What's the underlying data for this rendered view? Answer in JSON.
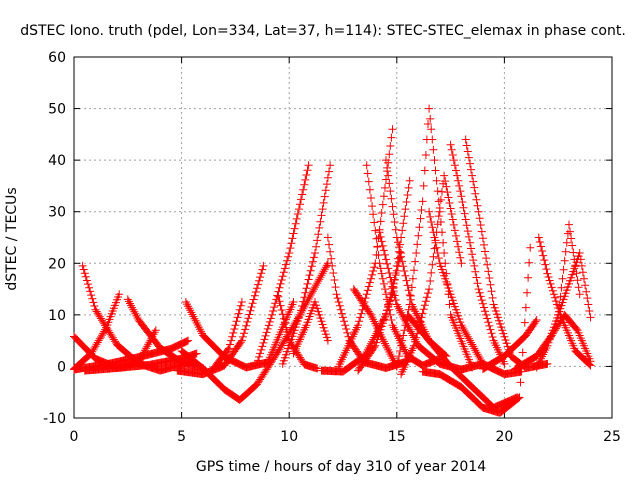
{
  "chart_data": {
    "type": "scatter",
    "title": "dSTEC Iono. truth (pdel, Lon=334, Lat=37, h=114): STEC-STEC_elemax in phase cont.",
    "xlabel": "GPS time / hours of day 310 of year 2014",
    "ylabel": "dSTEC  / TECUs",
    "xlim": [
      0,
      25
    ],
    "ylim": [
      -10,
      60
    ],
    "x_ticks": [
      0,
      5,
      10,
      15,
      20,
      25
    ],
    "y_ticks": [
      -10,
      0,
      10,
      20,
      30,
      40,
      50,
      60
    ],
    "x_tick_labels": [
      "0",
      "5",
      "10",
      "15",
      "20",
      "25"
    ],
    "y_tick_labels": [
      "-10",
      "0",
      "10",
      "20",
      "30",
      "40",
      "50",
      "60"
    ],
    "grid": true,
    "marker": "+",
    "colors": {
      "series": "#ff0000",
      "grid": "#a0a0a0",
      "axis": "#000000"
    },
    "series": [
      {
        "x": [
          0.0,
          1.0,
          2.0,
          3.0,
          3.8
        ],
        "y": [
          5.8,
          1.5,
          -0.3,
          0.8,
          7.0
        ]
      },
      {
        "x": [
          0.4,
          1.0,
          2.0,
          3.0,
          4.0,
          5.4
        ],
        "y": [
          19.5,
          11.0,
          4.2,
          0.6,
          -0.8,
          0.8
        ]
      },
      {
        "x": [
          0.0,
          0.8,
          1.5,
          2.1
        ],
        "y": [
          -0.5,
          2.5,
          7.5,
          14.0
        ]
      },
      {
        "x": [
          0.0,
          1.5,
          3.0,
          4.5,
          5.3
        ],
        "y": [
          -0.6,
          0.4,
          1.8,
          3.4,
          5.0
        ]
      },
      {
        "x": [
          2.5,
          3.0,
          4.0,
          5.0,
          6.0
        ],
        "y": [
          13.0,
          9.0,
          3.6,
          0.8,
          -0.3
        ]
      },
      {
        "x": [
          0.5,
          2.0,
          3.5,
          5.0,
          5.7
        ],
        "y": [
          -0.8,
          -0.3,
          0.3,
          1.5,
          2.5
        ]
      },
      {
        "x": [
          5.0,
          6.0,
          7.0,
          7.7,
          8.5,
          9.5,
          10.5,
          11.8
        ],
        "y": [
          3.0,
          -0.4,
          -4.5,
          -6.5,
          -3.5,
          3.0,
          10.0,
          20.0
        ]
      },
      {
        "x": [
          5.2,
          6.0,
          7.0,
          8.0,
          9.0,
          10.2
        ],
        "y": [
          12.5,
          6.0,
          1.8,
          -0.2,
          0.8,
          12.5
        ]
      },
      {
        "x": [
          4.8,
          6.0,
          7.0,
          7.8,
          8.8
        ],
        "y": [
          -0.8,
          -1.5,
          0.2,
          5.0,
          19.5
        ]
      },
      {
        "x": [
          6.5,
          7.2,
          7.8
        ],
        "y": [
          -0.3,
          3.5,
          12.5
        ]
      },
      {
        "x": [
          9.5,
          10.0,
          10.7,
          11.3
        ],
        "y": [
          13.5,
          5.0,
          0.4,
          -0.4
        ]
      },
      {
        "x": [
          10.2,
          10.8,
          11.2,
          11.8
        ],
        "y": [
          2.5,
          8.0,
          12.5,
          5.0
        ]
      },
      {
        "x": [
          8.5,
          9.2,
          10.0,
          10.9
        ],
        "y": [
          0.5,
          10.0,
          22.0,
          39.0
        ]
      },
      {
        "x": [
          9.7,
          10.5,
          11.2,
          11.9
        ],
        "y": [
          0.5,
          10.0,
          22.0,
          39.0
        ]
      },
      {
        "x": [
          11.8,
          12.2,
          12.8,
          13.5,
          14.5,
          15.5
        ],
        "y": [
          25.0,
          14.0,
          5.0,
          0.8,
          -0.3,
          1.0
        ]
      },
      {
        "x": [
          11.5,
          12.5,
          13.5,
          14.5,
          15.2
        ],
        "y": [
          -0.8,
          -1.0,
          2.0,
          10.0,
          22.0
        ]
      },
      {
        "x": [
          13.0,
          13.8,
          14.5,
          15.0
        ],
        "y": [
          15.0,
          10.0,
          4.0,
          0.0
        ]
      },
      {
        "x": [
          12.3,
          13.2,
          14.0,
          14.8
        ],
        "y": [
          0.0,
          8.0,
          20.0,
          46.0
        ]
      },
      {
        "x": [
          13.6,
          14.2,
          14.8,
          15.5,
          16.2,
          17.0
        ],
        "y": [
          39.0,
          20.0,
          8.0,
          2.0,
          0.2,
          1.5
        ]
      },
      {
        "x": [
          14.5,
          15.0,
          15.7,
          16.5,
          17.3
        ],
        "y": [
          40.0,
          25.0,
          12.0,
          5.0,
          2.0
        ]
      },
      {
        "x": [
          13.2,
          14.0,
          14.8,
          15.6
        ],
        "y": [
          -0.8,
          4.0,
          14.0,
          36.0
        ]
      },
      {
        "x": [
          15.0,
          15.6,
          16.2,
          16.5,
          17.5,
          18.5
        ],
        "y": [
          0.0,
          12.0,
          32.0,
          50.0,
          10.0,
          -0.2
        ]
      },
      {
        "x": [
          14.2,
          15.0,
          16.0,
          17.0,
          18.0,
          19.0
        ],
        "y": [
          26.0,
          12.0,
          4.0,
          0.5,
          -0.6,
          0.5
        ]
      },
      {
        "x": [
          15.2,
          15.8,
          16.5,
          17.2,
          18.0
        ],
        "y": [
          -1.5,
          4.0,
          15.0,
          37.0,
          20.0
        ]
      },
      {
        "x": [
          16.5,
          17.0,
          18.0,
          19.0,
          20.0,
          20.8
        ],
        "y": [
          30.0,
          20.0,
          8.0,
          0.5,
          -1.5,
          -1.0
        ]
      },
      {
        "x": [
          17.5,
          18.0,
          18.8,
          19.5,
          20.0
        ],
        "y": [
          43.0,
          33.0,
          15.0,
          5.0,
          0.5
        ]
      },
      {
        "x": [
          18.2,
          18.8,
          19.5,
          20.3,
          21.0,
          22.0
        ],
        "y": [
          44.0,
          30.0,
          12.0,
          2.0,
          -0.3,
          0.5
        ]
      },
      {
        "x": [
          16.2,
          17.0,
          18.0,
          19.0,
          19.8,
          20.7,
          21.2
        ],
        "y": [
          -1.0,
          -1.5,
          -4.0,
          -8.0,
          -9.0,
          -6.0,
          23.0
        ]
      },
      {
        "x": [
          15.5,
          16.5,
          17.5,
          18.5,
          19.5,
          20.6
        ],
        "y": [
          10.0,
          5.0,
          0.0,
          -4.0,
          -8.0,
          -6.0
        ]
      },
      {
        "x": [
          19.0,
          20.0,
          21.0,
          21.5
        ],
        "y": [
          -0.5,
          2.0,
          6.0,
          9.0
        ]
      },
      {
        "x": [
          21.6,
          22.0,
          22.6,
          23.3,
          24.0
        ],
        "y": [
          25.0,
          18.0,
          10.0,
          3.0,
          0.2
        ]
      },
      {
        "x": [
          20.5,
          21.5,
          22.2,
          22.8,
          23.4,
          24.0
        ],
        "y": [
          -0.5,
          2.0,
          6.0,
          10.0,
          7.0,
          1.0
        ]
      },
      {
        "x": [
          21.5,
          22.0,
          22.5,
          23.0,
          23.5
        ],
        "y": [
          -0.2,
          4.0,
          10.0,
          27.5,
          14.0
        ]
      },
      {
        "x": [
          22.5,
          23.0,
          23.5,
          24.0
        ],
        "y": [
          10.0,
          16.0,
          22.0,
          9.5
        ]
      }
    ]
  }
}
